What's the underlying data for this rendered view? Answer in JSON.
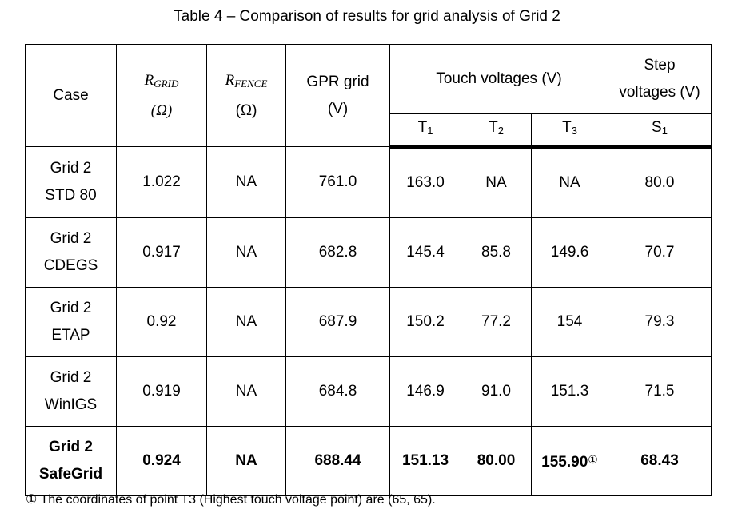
{
  "title": "Table 4 – Comparison of results for grid analysis of Grid 2",
  "table": {
    "header": {
      "case": "Case",
      "r_grid": {
        "symbol": "R",
        "sub": "GRID",
        "unit": "(Ω)"
      },
      "r_fence": {
        "symbol": "R",
        "sub": "FENCE",
        "unit": "(Ω)"
      },
      "gpr": [
        "GPR grid",
        "(V)"
      ],
      "touch": "Touch voltages (V)",
      "step": [
        "Step",
        "voltages (V)"
      ],
      "touch_cols": [
        {
          "symbol": "T",
          "sub": "1"
        },
        {
          "symbol": "T",
          "sub": "2"
        },
        {
          "symbol": "T",
          "sub": "3"
        }
      ],
      "step_cols": [
        {
          "symbol": "S",
          "sub": "1"
        }
      ]
    },
    "rows": [
      {
        "case": [
          "Grid 2",
          "STD 80"
        ],
        "cells": [
          "1.022",
          "NA",
          "761.0",
          "163.0",
          "NA",
          "NA",
          "80.0"
        ]
      },
      {
        "case": [
          "Grid 2",
          "CDEGS"
        ],
        "cells": [
          "0.917",
          "NA",
          "682.8",
          "145.4",
          "85.8",
          "149.6",
          "70.7"
        ]
      },
      {
        "case": [
          "Grid 2",
          "ETAP"
        ],
        "cells": [
          "0.92",
          "NA",
          "687.9",
          "150.2",
          "77.2",
          "154",
          "79.3"
        ]
      },
      {
        "case": [
          "Grid 2",
          "WinIGS"
        ],
        "cells": [
          "0.919",
          "NA",
          "684.8",
          "146.9",
          "91.0",
          "151.3",
          "71.5"
        ]
      },
      {
        "case": [
          "Grid 2",
          "SafeGrid"
        ],
        "cells": [
          "0.924",
          "NA",
          "688.44",
          "151.13",
          "80.00",
          "155.90",
          "68.43"
        ],
        "bold": true,
        "t3_note": "①"
      }
    ]
  },
  "footnote": {
    "marker": "①",
    "text": "The coordinates of point T3 (Highest touch voltage point) are (65, 65)."
  }
}
